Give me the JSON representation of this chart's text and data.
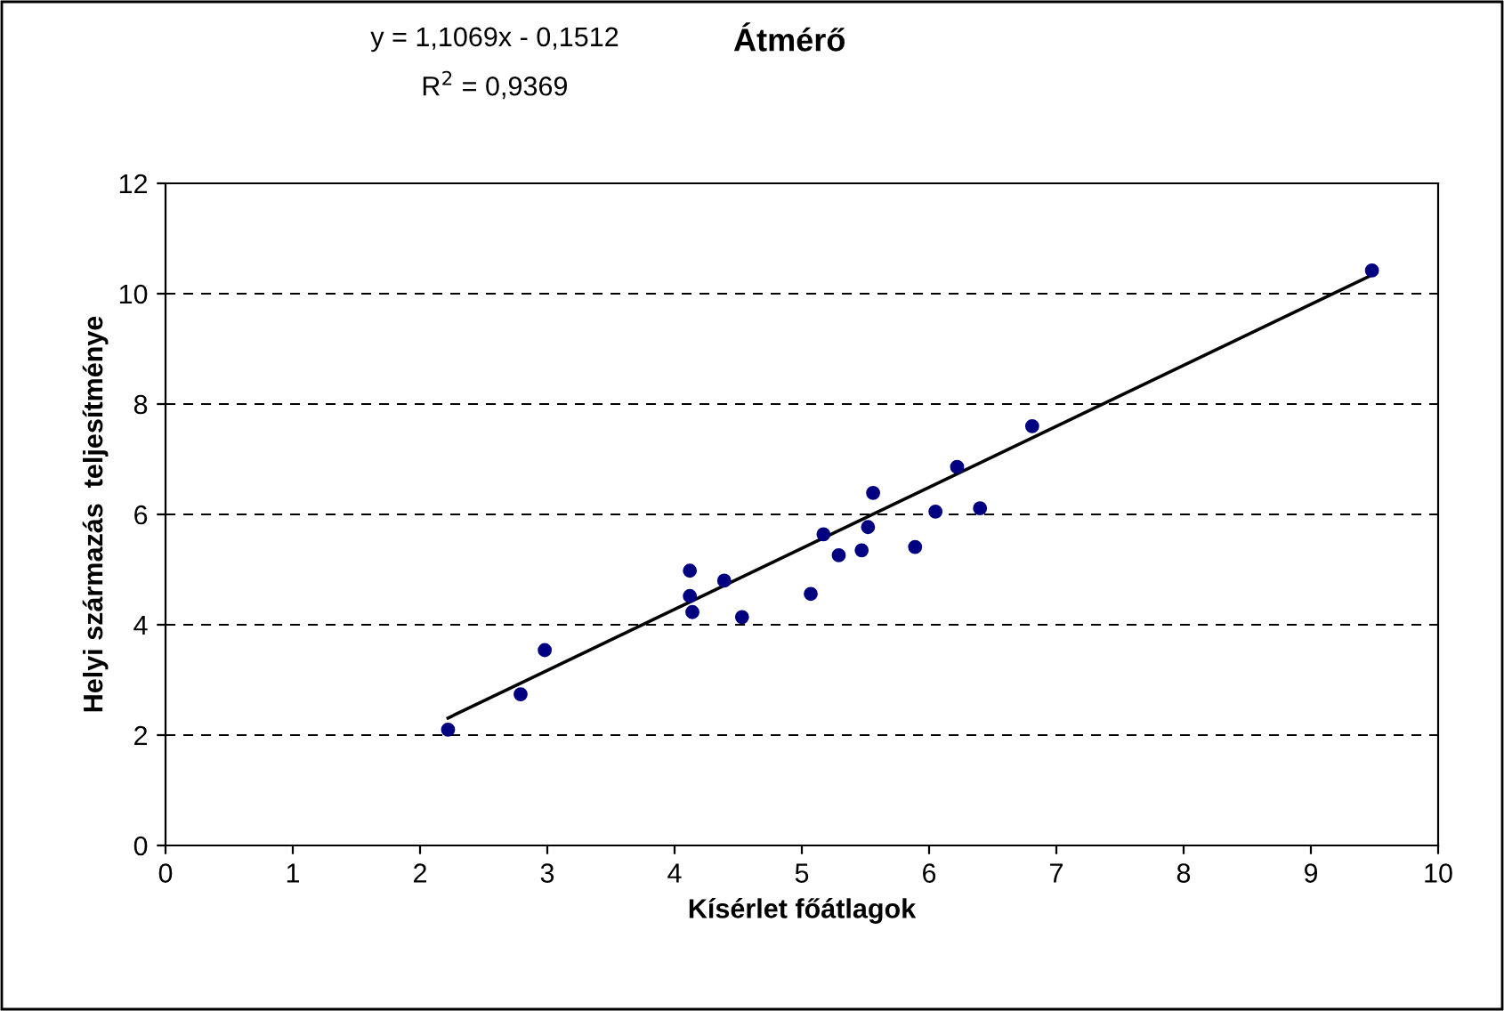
{
  "chart_data": {
    "type": "scatter",
    "title": "Átmérő",
    "xlabel": "Kísérlet főátlagok",
    "ylabel": "Helyi származás  teljesítménye",
    "annotations": [
      "y = 1,1069x - 0,1512",
      "R$^{2}$ = 0,9369"
    ],
    "series": [
      {
        "color": "#000080",
        "marker": "circle",
        "x": [
          2.22,
          2.79,
          2.98,
          4.12,
          4.12,
          4.14,
          4.39,
          4.53,
          5.07,
          5.17,
          5.29,
          5.47,
          5.52,
          5.56,
          5.89,
          6.05,
          6.22,
          6.4,
          6.81,
          9.48
        ],
        "values": [
          2.1,
          2.74,
          3.54,
          4.98,
          4.52,
          4.23,
          4.8,
          4.14,
          4.56,
          5.64,
          5.26,
          5.35,
          5.77,
          6.39,
          5.41,
          6.05,
          6.86,
          6.11,
          7.6,
          10.42
        ]
      },
      {
        "type": "line",
        "color": "#000000",
        "marker": "none",
        "x": [
          2.22,
          9.48
        ],
        "values": [
          2.31,
          10.34
        ]
      }
    ],
    "xlim": [
      0,
      10
    ],
    "xticks": [
      0,
      1,
      2,
      3,
      4,
      5,
      6,
      7,
      8,
      9,
      10
    ],
    "ylim": [
      0,
      12
    ],
    "yticks": [
      0,
      2,
      4,
      6,
      8,
      10,
      12
    ],
    "grid": "y",
    "legend": false
  }
}
